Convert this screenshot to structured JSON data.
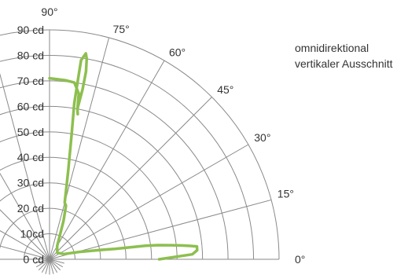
{
  "chart_data": {
    "type": "polar",
    "title": "",
    "annotation": [
      "omnidirektional",
      "vertikaler Ausschnitt"
    ],
    "r_range": [
      0,
      90
    ],
    "r_ticks": [
      {
        "value": 0,
        "label": "0 cd"
      },
      {
        "value": 10,
        "label": "10cd"
      },
      {
        "value": 20,
        "label": "20 cd"
      },
      {
        "value": 30,
        "label": "30 cd"
      },
      {
        "value": 40,
        "label": "40 cd"
      },
      {
        "value": 50,
        "label": "50 cd"
      },
      {
        "value": 60,
        "label": "60 cd"
      },
      {
        "value": 70,
        "label": "70 cd"
      },
      {
        "value": 80,
        "label": "80 cd"
      },
      {
        "value": 90,
        "label": "90 cd"
      }
    ],
    "angle_labels": [
      {
        "angle": 0,
        "label": "0°"
      },
      {
        "angle": 15,
        "label": "15°"
      },
      {
        "angle": 30,
        "label": "30°"
      },
      {
        "angle": 45,
        "label": "45°"
      },
      {
        "angle": 60,
        "label": "60°"
      },
      {
        "angle": 75,
        "label": "75°"
      },
      {
        "angle": 90,
        "label": "90°"
      }
    ],
    "grid": true,
    "series": [
      {
        "color": "#8dbf4f",
        "points": [
          {
            "angle": 0,
            "r": 43
          },
          {
            "angle": 2,
            "r": 56
          },
          {
            "angle": 3.5,
            "r": 58
          },
          {
            "angle": 5,
            "r": 58
          },
          {
            "angle": 5.5,
            "r": 55
          },
          {
            "angle": 6,
            "r": 52
          },
          {
            "angle": 6.6,
            "r": 48
          },
          {
            "angle": 7.4,
            "r": 43
          },
          {
            "angle": 8,
            "r": 38
          },
          {
            "angle": 8.5,
            "r": 32
          },
          {
            "angle": 9,
            "r": 26
          },
          {
            "angle": 10.5,
            "r": 20
          },
          {
            "angle": 14,
            "r": 12
          },
          {
            "angle": 20,
            "r": 6
          },
          {
            "angle": 40,
            "r": 4
          },
          {
            "angle": 60,
            "r": 6
          },
          {
            "angle": 70,
            "r": 16
          },
          {
            "angle": 73,
            "r": 22
          },
          {
            "angle": 75,
            "r": 23
          },
          {
            "angle": 78,
            "r": 35
          },
          {
            "angle": 80,
            "r": 50
          },
          {
            "angle": 81,
            "r": 62
          },
          {
            "angle": 81,
            "r": 72
          },
          {
            "angle": 81,
            "r": 79
          },
          {
            "angle": 80,
            "r": 82
          },
          {
            "angle": 79.5,
            "r": 80
          },
          {
            "angle": 79,
            "r": 75
          },
          {
            "angle": 79,
            "r": 68
          },
          {
            "angle": 79.5,
            "r": 60
          },
          {
            "angle": 79,
            "r": 58
          },
          {
            "angle": 79.5,
            "r": 60
          },
          {
            "angle": 80,
            "r": 66
          },
          {
            "angle": 82,
            "r": 70
          },
          {
            "angle": 85,
            "r": 70.5
          },
          {
            "angle": 90,
            "r": 71
          }
        ]
      }
    ]
  }
}
